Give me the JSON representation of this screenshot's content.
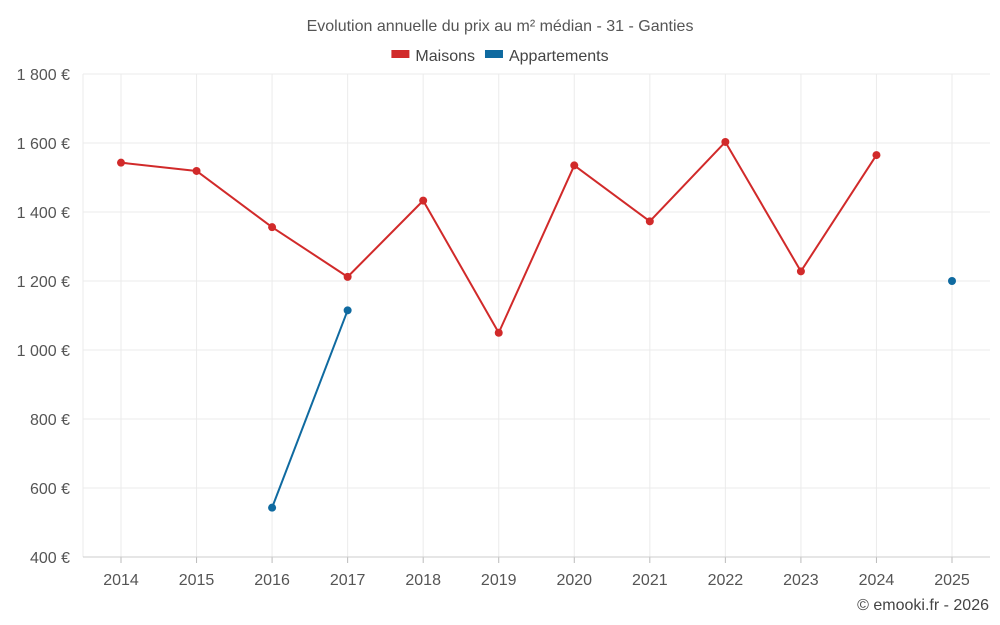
{
  "chart_data": {
    "type": "line",
    "title": "Evolution annuelle du prix au m² médian - 31 - Ganties",
    "categories": [
      "2014",
      "2015",
      "2016",
      "2017",
      "2018",
      "2019",
      "2020",
      "2021",
      "2022",
      "2023",
      "2024",
      "2025"
    ],
    "series": [
      {
        "name": "Maisons",
        "color": "#d12a2a",
        "values": [
          1543,
          1519,
          1356,
          1212,
          1433,
          1050,
          1535,
          1373,
          1603,
          1228,
          1565,
          null
        ]
      },
      {
        "name": "Appartements",
        "color": "#0f6aa0",
        "values": [
          null,
          null,
          543,
          1115,
          null,
          null,
          null,
          null,
          null,
          null,
          null,
          1200
        ]
      }
    ],
    "ylim": [
      400,
      1800
    ],
    "yticks": [
      400,
      600,
      800,
      1000,
      1200,
      1400,
      1600,
      1800
    ],
    "ytick_labels": [
      "400 €",
      "600 €",
      "800 €",
      "1 000 €",
      "1 200 €",
      "1 400 €",
      "1 600 €",
      "1 800 €"
    ],
    "xlabel": "",
    "ylabel": "",
    "grid": true,
    "legend_position": "top-center"
  },
  "credit": "© emooki.fr - 2026"
}
